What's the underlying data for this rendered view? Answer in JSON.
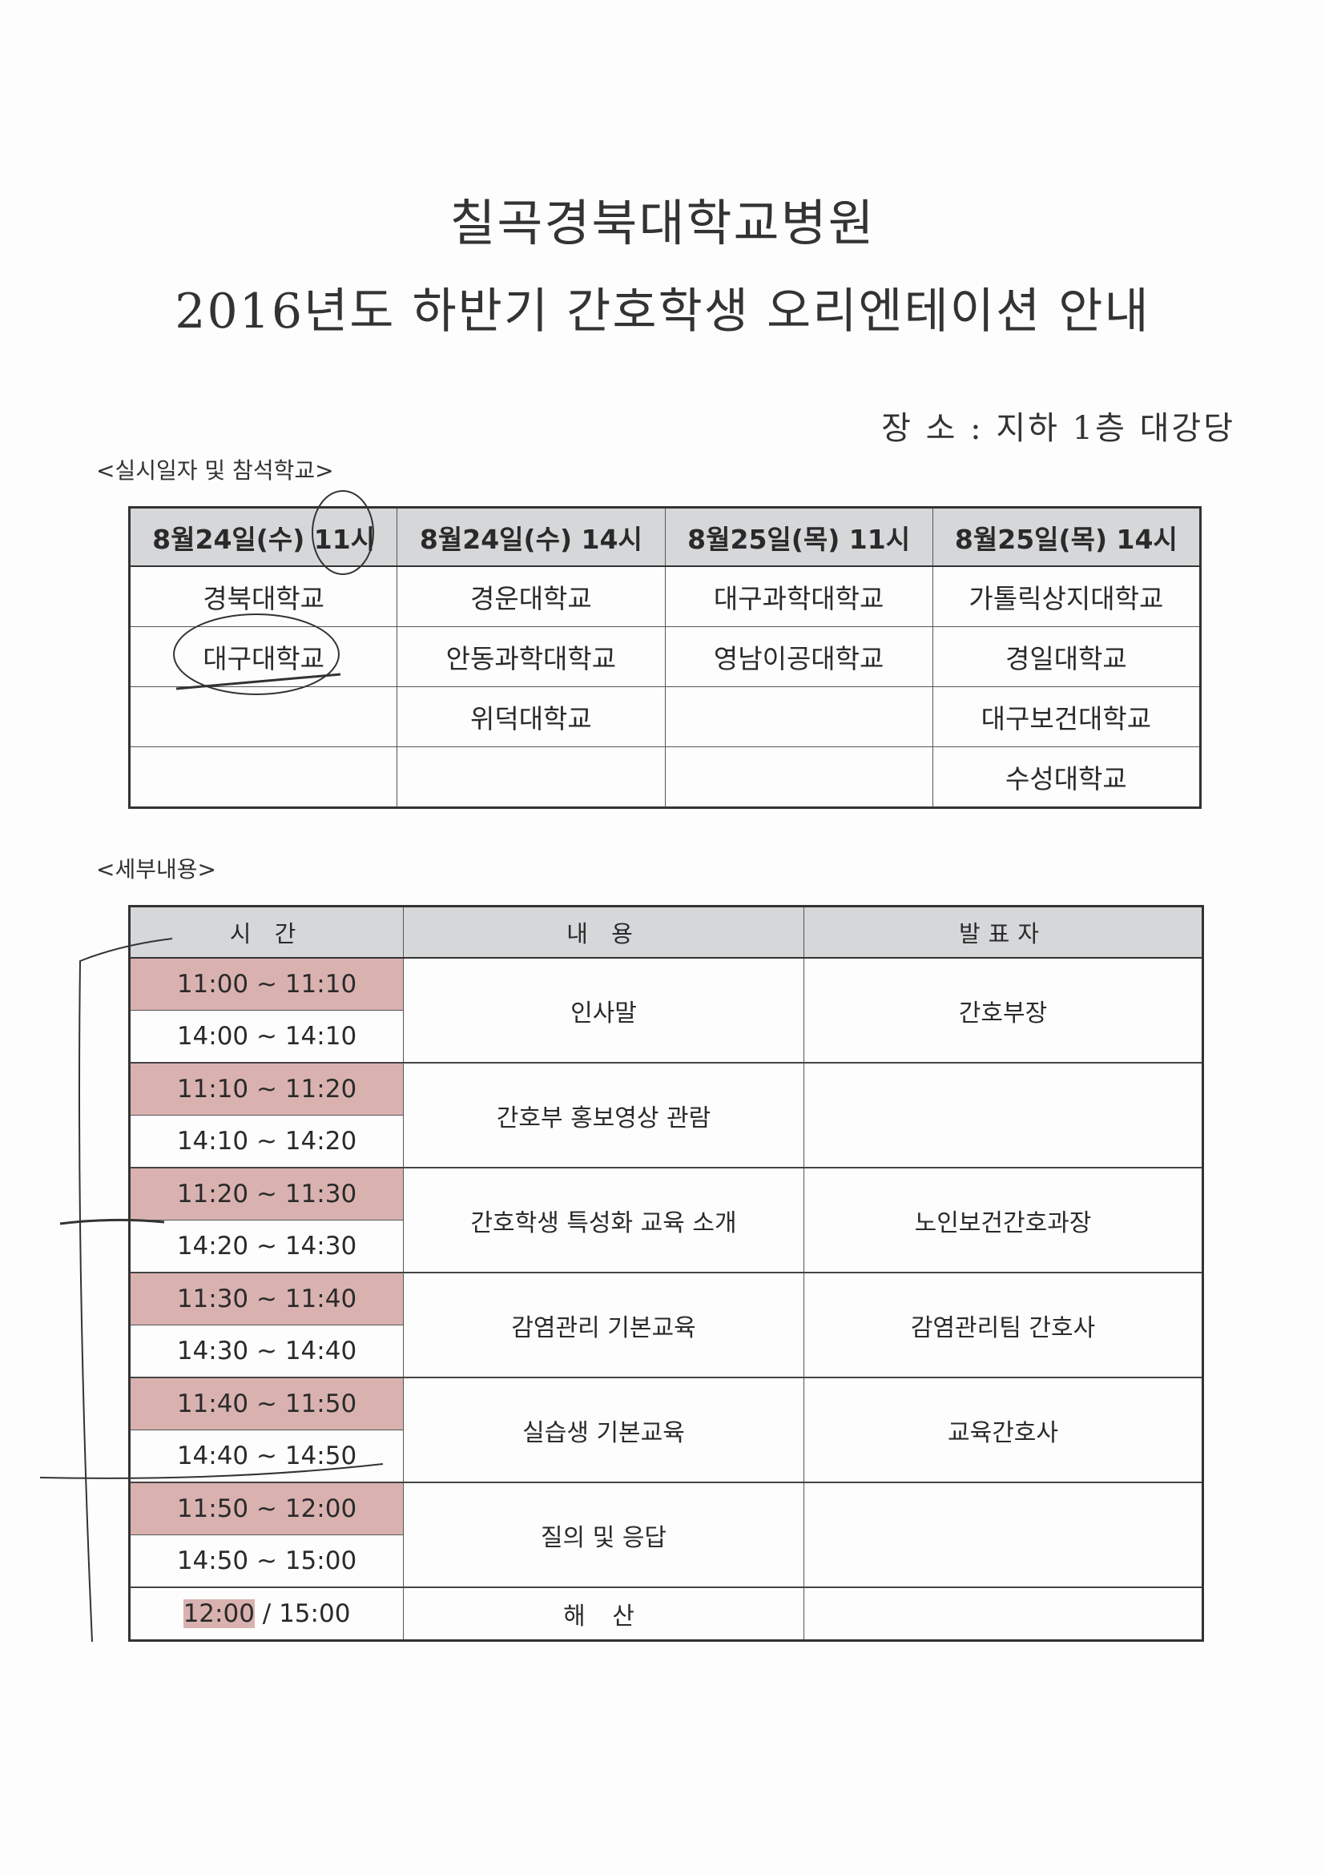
{
  "header": {
    "title_line1": "칠곡경북대학교병원",
    "title_line2": "2016년도 하반기 간호학생 오리엔테이션 안내",
    "location": "장 소 : 지하 1층 대강당"
  },
  "schedule": {
    "section_label": "<실시일자 및 참석학교>",
    "columns": [
      "8월24일(수) 11시",
      "8월24일(수) 14시",
      "8월25일(목) 11시",
      "8월25일(목) 14시"
    ],
    "rows": [
      [
        "경북대학교",
        "경운대학교",
        "대구과학대학교",
        "가톨릭상지대학교"
      ],
      [
        "대구대학교",
        "안동과학대학교",
        "영남이공대학교",
        "경일대학교"
      ],
      [
        "",
        "위덕대학교",
        "",
        "대구보건대학교"
      ],
      [
        "",
        "",
        "",
        "수성대학교"
      ]
    ]
  },
  "details": {
    "section_label": "<세부내용>",
    "columns": [
      "시 간",
      "내 용",
      "발표자"
    ],
    "items": [
      {
        "times": [
          "11:00 ~ 11:10",
          "14:00 ~ 14:10"
        ],
        "content": "인사말",
        "presenter": "간호부장"
      },
      {
        "times": [
          "11:10 ~ 11:20",
          "14:10 ~ 14:20"
        ],
        "content": "간호부 홍보영상 관람",
        "presenter": ""
      },
      {
        "times": [
          "11:20 ~ 11:30",
          "14:20 ~ 14:30"
        ],
        "content": "간호학생 특성화 교육 소개",
        "presenter": "노인보건간호과장"
      },
      {
        "times": [
          "11:30 ~ 11:40",
          "14:30 ~ 14:40"
        ],
        "content": "감염관리 기본교육",
        "presenter": "감염관리팀 간호사"
      },
      {
        "times": [
          "11:40 ~ 11:50",
          "14:40 ~ 14:50"
        ],
        "content": "실습생 기본교육",
        "presenter": "교육간호사"
      },
      {
        "times": [
          "11:50 ~ 12:00",
          "14:50 ~ 15:00"
        ],
        "content": "질의 및 응답",
        "presenter": ""
      }
    ],
    "end_row": {
      "time_a": "12:00",
      "separator": " / ",
      "time_b": "15:00",
      "content": "해 산",
      "presenter": ""
    }
  },
  "colors": {
    "highlight_pink": "#d9b2b0",
    "header_gray": "#d5d7d9"
  }
}
